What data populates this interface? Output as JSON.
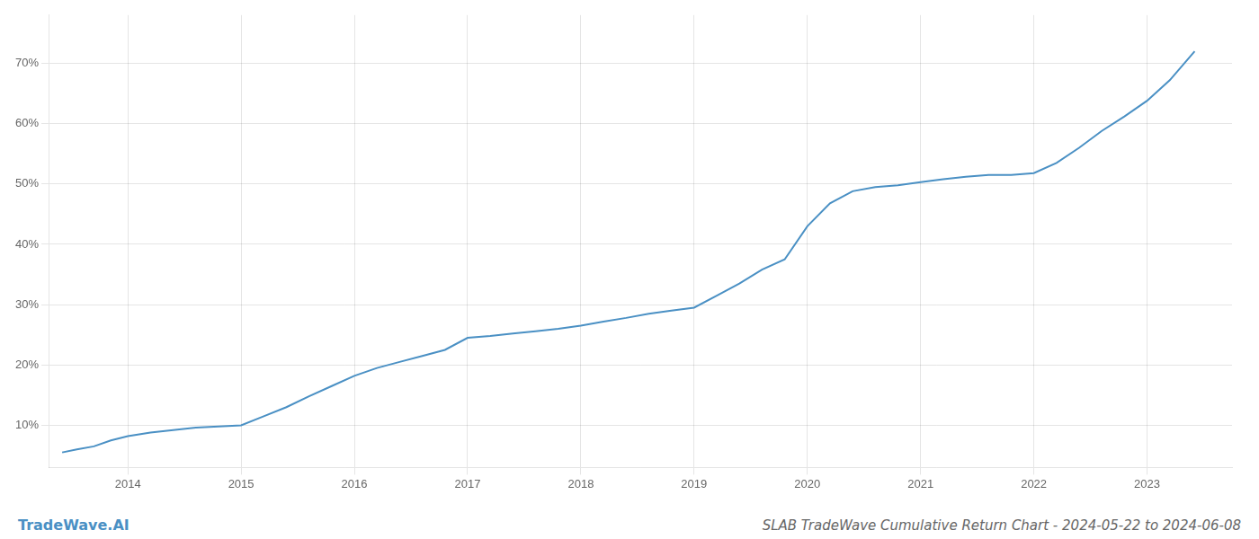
{
  "chart_data": {
    "type": "line",
    "title": "SLAB TradeWave Cumulative Return Chart - 2024-05-22 to 2024-06-08",
    "annotations": [
      "TradeWave.AI"
    ],
    "color": "#4a90c4",
    "grid": true,
    "x": [
      2013.42,
      2013.55,
      2013.7,
      2013.85,
      2014.0,
      2014.2,
      2014.4,
      2014.6,
      2014.8,
      2015.0,
      2015.2,
      2015.4,
      2015.6,
      2015.8,
      2016.0,
      2016.2,
      2016.4,
      2016.6,
      2016.8,
      2017.0,
      2017.2,
      2017.4,
      2017.6,
      2017.8,
      2018.0,
      2018.2,
      2018.4,
      2018.6,
      2018.8,
      2019.0,
      2019.2,
      2019.4,
      2019.6,
      2019.8,
      2020.0,
      2020.2,
      2020.4,
      2020.6,
      2020.8,
      2021.0,
      2021.2,
      2021.4,
      2021.6,
      2021.8,
      2022.0,
      2022.2,
      2022.4,
      2022.6,
      2022.8,
      2023.0,
      2023.2,
      2023.42
    ],
    "values": [
      0.055,
      0.06,
      0.065,
      0.075,
      0.082,
      0.088,
      0.092,
      0.096,
      0.098,
      0.1,
      0.115,
      0.13,
      0.148,
      0.165,
      0.182,
      0.195,
      0.205,
      0.215,
      0.225,
      0.245,
      0.248,
      0.252,
      0.256,
      0.26,
      0.265,
      0.272,
      0.278,
      0.285,
      0.29,
      0.295,
      0.315,
      0.335,
      0.358,
      0.375,
      0.43,
      0.468,
      0.488,
      0.495,
      0.498,
      0.503,
      0.508,
      0.512,
      0.515,
      0.515,
      0.518,
      0.535,
      0.56,
      0.588,
      0.612,
      0.638,
      0.672,
      0.72
    ],
    "xlim": [
      2013.3,
      2023.75
    ],
    "xticks": [
      2014,
      2015,
      2016,
      2017,
      2018,
      2019,
      2020,
      2021,
      2022,
      2023
    ],
    "ylim": [
      0.03,
      0.78
    ],
    "yticks": [
      {
        "value": 0.1,
        "label": "10%"
      },
      {
        "value": 0.2,
        "label": "20%"
      },
      {
        "value": 0.3,
        "label": "30%"
      },
      {
        "value": 0.4,
        "label": "40%"
      },
      {
        "value": 0.5,
        "label": "50%"
      },
      {
        "value": 0.6,
        "label": "60%"
      },
      {
        "value": 0.7,
        "label": "70%"
      }
    ]
  }
}
